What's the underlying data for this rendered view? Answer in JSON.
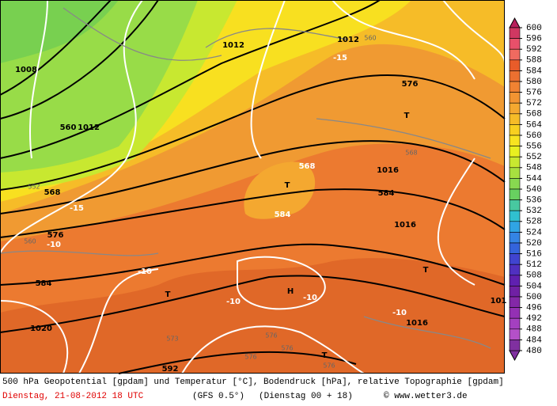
{
  "map": {
    "labels": [
      "1008",
      "1012",
      "1012",
      "560",
      "-15",
      "576",
      "T",
      "560",
      "1012",
      "568",
      "T",
      "568",
      "1016",
      "584",
      "552",
      "568",
      "-15",
      "584",
      "1016",
      "576",
      "560",
      "-10",
      "-10",
      "T",
      "584",
      "T",
      "H",
      "-10",
      "-10",
      "-10",
      "1016",
      "101",
      "1020",
      "573",
      "576",
      "576",
      "576",
      "T",
      "576",
      "592"
    ]
  },
  "colorbar": {
    "ticks": [
      600,
      596,
      592,
      588,
      584,
      580,
      576,
      572,
      568,
      564,
      560,
      556,
      552,
      548,
      544,
      540,
      536,
      532,
      528,
      524,
      520,
      516,
      512,
      508,
      504,
      500,
      496,
      492,
      488,
      484,
      480
    ],
    "colors": [
      "#b8205c",
      "#d03862",
      "#e8506a",
      "#f06a60",
      "#e85c2a",
      "#ec7030",
      "#f08232",
      "#f29432",
      "#f4a830",
      "#f6bc28",
      "#f8d020",
      "#f8e420",
      "#e8f020",
      "#c8e830",
      "#a8e040",
      "#88d850",
      "#68d060",
      "#48c8a0",
      "#30c0d0",
      "#30a4e4",
      "#3484e4",
      "#3464dc",
      "#4044d0",
      "#5030c0",
      "#6020b0",
      "#7020a4",
      "#8428a8",
      "#9430b4",
      "#a440c0",
      "#b450c8",
      "#8030a0"
    ]
  },
  "caption": {
    "line1": "500 hPa Geopotential [gpdam] und Temperatur [°C], Bodendruck [hPa], relative Topographie [gpdam]",
    "date": "Dienstag, 21-08-2012  18 UTC",
    "model": "(GFS 0.5°)",
    "run": "(Dienstag 00 + 18)",
    "credit": "© www.wetter3.de"
  }
}
